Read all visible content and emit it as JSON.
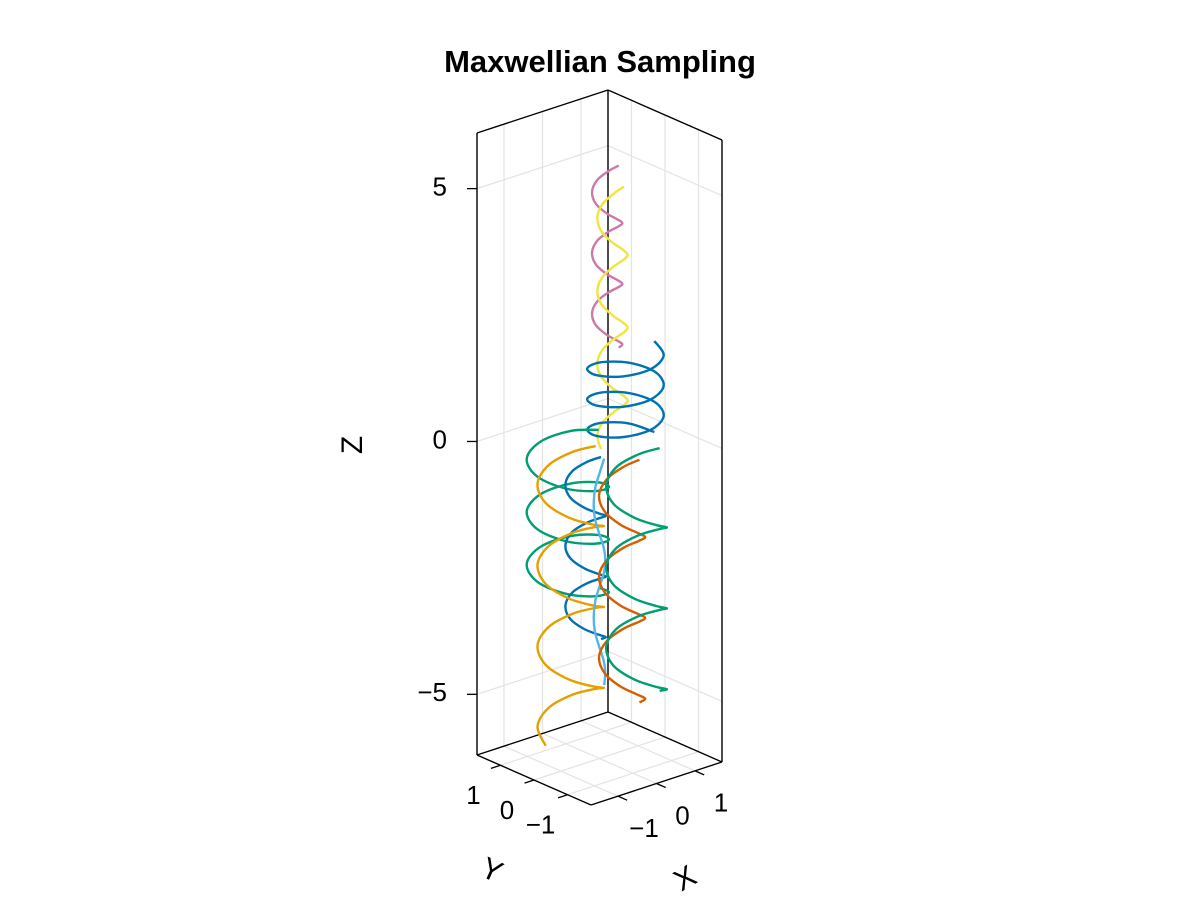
{
  "chart_data": {
    "type": "line3d",
    "title": "Maxwellian Sampling",
    "xlabel": "X",
    "ylabel": "Y",
    "zlabel": "Z",
    "xlim": [
      -1.7,
      1.7
    ],
    "ylim": [
      -1.7,
      1.7
    ],
    "zlim": [
      -6.2,
      6.1
    ],
    "xticks": [
      {
        "value": -1,
        "label": "−1"
      },
      0,
      1
    ],
    "yticks": [
      {
        "value": -1,
        "label": "−1"
      },
      0,
      1
    ],
    "zticks": [
      {
        "value": -5,
        "label": "−5"
      },
      0,
      5
    ],
    "grid": true,
    "series": [
      {
        "color": "#cc79a7",
        "x": [
          0.5,
          0.41,
          0.2,
          -0.01,
          -0.1,
          -0.01,
          0.2,
          0.41,
          0.5,
          0.41,
          0.2,
          -0.01,
          -0.1,
          -0.01,
          0.2,
          0.41,
          0.5,
          0.41,
          0.2,
          -0.01,
          -0.1,
          -0.01,
          0.2,
          0.41,
          0.5
        ],
        "y": [
          0,
          0.21,
          0.3,
          0.21,
          0,
          -0.21,
          -0.3,
          -0.21,
          0,
          0.21,
          0.3,
          0.21,
          0,
          -0.21,
          -0.3,
          -0.21,
          0,
          0.21,
          0.3,
          0.21,
          0,
          -0.21,
          -0.3,
          -0.21,
          0
        ],
        "z": [
          5.4,
          5.25,
          5.1,
          4.95,
          4.8,
          4.65,
          4.5,
          4.35,
          4.2,
          4.05,
          3.9,
          3.75,
          3.6,
          3.45,
          3.3,
          3.15,
          3,
          2.85,
          2.7,
          2.55,
          2.4,
          2.25,
          2.1,
          1.95,
          1.8
        ]
      },
      {
        "color": "#f0e442",
        "x": [
          0.55,
          0.46,
          0.25,
          0.04,
          -0.05,
          0.04,
          0.25,
          0.46,
          0.55,
          0.46,
          0.25,
          0.04,
          -0.05,
          0.04,
          0.25,
          0.46,
          0.55,
          0.46,
          0.25,
          0.04,
          -0.05,
          0.04,
          0.25,
          0.46,
          0.55,
          0.46,
          0.25,
          0.04,
          -0.05
        ],
        "y": [
          -0.1,
          0.11,
          0.2,
          0.11,
          -0.1,
          -0.31,
          -0.4,
          -0.31,
          -0.1,
          0.11,
          0.2,
          0.11,
          -0.1,
          -0.31,
          -0.4,
          -0.31,
          -0.1,
          0.11,
          0.2,
          0.11,
          -0.1,
          -0.31,
          -0.4,
          -0.31,
          -0.1,
          0.11,
          0.2,
          0.11,
          -0.1
        ],
        "z": [
          5,
          4.82,
          4.64,
          4.46,
          4.28,
          4.1,
          3.92,
          3.74,
          3.56,
          3.38,
          3.2,
          3.02,
          2.84,
          2.66,
          2.48,
          2.3,
          2.12,
          1.94,
          1.76,
          1.58,
          1.4,
          1.22,
          1.04,
          0.86,
          0.68,
          0.5,
          0.32,
          0.14,
          -0.04
        ]
      },
      {
        "color": "#0072b2",
        "x": [
          1.25,
          1.03,
          0.5,
          -0.03,
          -0.25,
          -0.03,
          0.5,
          1.03,
          1.25,
          1.03,
          0.5,
          -0.03,
          -0.25,
          -0.03,
          0.5,
          1.03,
          1.25,
          1.03,
          0.5,
          -0.03,
          -0.25,
          -0.03,
          0.5,
          1.03,
          1.25
        ],
        "y": [
          -0.2,
          0.33,
          0.55,
          0.33,
          -0.2,
          -0.73,
          -0.95,
          -0.73,
          -0.2,
          0.33,
          0.55,
          0.33,
          -0.2,
          -0.73,
          -0.95,
          -0.73,
          -0.2,
          0.33,
          0.55,
          0.33,
          -0.2,
          -0.73,
          -0.95,
          -0.73,
          -0.2
        ],
        "z": [
          0,
          0.075,
          0.15,
          0.225,
          0.3,
          0.375,
          0.45,
          0.525,
          0.6,
          0.675,
          0.75,
          0.825,
          0.9,
          0.975,
          1.05,
          1.125,
          1.2,
          1.275,
          1.35,
          1.425,
          1.5,
          1.575,
          1.65,
          1.725,
          1.8
        ]
      },
      {
        "color": "#009e73",
        "x": [
          0.5,
          0.27,
          -0.3,
          -0.87,
          -1.1,
          -0.87,
          -0.3,
          0.27,
          0.5,
          0.27,
          -0.3,
          -0.87,
          -1.1,
          -0.87,
          -0.3,
          0.27,
          0.5,
          0.27,
          -0.3,
          -0.87,
          -1.1,
          -0.87,
          -0.3,
          0.27,
          0.5
        ],
        "y": [
          0.6,
          1.17,
          1.4,
          1.17,
          0.6,
          0.03,
          -0.2,
          0.03,
          0.6,
          1.17,
          1.4,
          1.17,
          0.6,
          0.03,
          -0.2,
          0.03,
          0.6,
          1.17,
          1.4,
          1.17,
          0.6,
          0.03,
          -0.2,
          0.03,
          0.6
        ],
        "z": [
          0,
          -0.13,
          -0.26,
          -0.39,
          -0.52,
          -0.65,
          -0.78,
          -0.91,
          -1.04,
          -1.17,
          -1.3,
          -1.43,
          -1.56,
          -1.69,
          -1.82,
          -1.95,
          -2.08,
          -2.21,
          -2.34,
          -2.47,
          -2.6,
          -2.73,
          -2.86,
          -2.99,
          -3.12
        ]
      },
      {
        "color": "#0072b2",
        "x": [
          0.3,
          0.18,
          -0.1,
          -0.38,
          -0.5,
          -0.38,
          -0.1,
          0.18,
          0.3,
          0.18,
          -0.1,
          -0.38,
          -0.5,
          -0.38,
          -0.1,
          0.18,
          0.3,
          0.18,
          -0.1,
          -0.38,
          -0.5,
          -0.38,
          -0.1,
          0.18,
          0.3
        ],
        "y": [
          0.3,
          0.58,
          0.7,
          0.58,
          0.3,
          0.02,
          -0.1,
          0.02,
          0.3,
          0.58,
          0.7,
          0.58,
          0.3,
          0.02,
          -0.1,
          0.02,
          0.3,
          0.58,
          0.7,
          0.58,
          0.3,
          0.02,
          -0.1,
          0.02,
          0.3
        ],
        "z": [
          -0.4,
          -0.55,
          -0.7,
          -0.85,
          -1,
          -1.15,
          -1.3,
          -1.45,
          -1.6,
          -1.75,
          -1.9,
          -2.05,
          -2.2,
          -2.35,
          -2.5,
          -2.65,
          -2.8,
          -2.95,
          -3.1,
          -3.25,
          -3.4,
          -3.55,
          -3.7,
          -3.85,
          -4
        ]
      },
      {
        "color": "#e69f00",
        "x": [
          0.25,
          0.06,
          -0.4,
          -0.86,
          -1.05,
          -0.86,
          -0.4,
          0.06,
          0.25,
          0.06,
          -0.4,
          -0.86,
          -1.05,
          -0.86,
          -0.4,
          0.06,
          0.25,
          0.06,
          -0.4,
          -0.86,
          -1.05,
          -0.86,
          -0.4,
          0.06,
          0.25,
          0.06,
          -0.4,
          -0.86,
          -1.05
        ],
        "y": [
          0.4,
          0.86,
          1.05,
          0.86,
          0.4,
          -0.06,
          -0.25,
          -0.06,
          0.4,
          0.86,
          1.05,
          0.86,
          0.4,
          -0.06,
          -0.25,
          -0.06,
          0.4,
          0.86,
          1.05,
          0.86,
          0.4,
          -0.06,
          -0.25,
          -0.06,
          0.4,
          0.86,
          1.05,
          0.86,
          0.4
        ],
        "z": [
          -0.2,
          -0.4,
          -0.6,
          -0.8,
          -1,
          -1.2,
          -1.4,
          -1.6,
          -1.8,
          -2,
          -2.2,
          -2.4,
          -2.6,
          -2.8,
          -3,
          -3.2,
          -3.4,
          -3.6,
          -3.8,
          -4,
          -4.2,
          -4.4,
          -4.6,
          -4.8,
          -5,
          -5.2,
          -5.4,
          -5.6,
          -5.8
        ]
      },
      {
        "color": "#56b4e9",
        "x": [
          0.12,
          0.08,
          0,
          -0.08,
          -0.12,
          -0.08,
          0,
          0.08,
          0.12,
          0.08,
          0,
          -0.08,
          -0.12,
          -0.08,
          0,
          0.08,
          0.12
        ],
        "y": [
          0,
          0.08,
          0.12,
          0.08,
          0,
          -0.08,
          -0.12,
          -0.08,
          0,
          0.08,
          0.12,
          0.08,
          0,
          -0.08,
          -0.12,
          -0.08,
          0
        ],
        "z": [
          -0.3,
          -0.58,
          -0.86,
          -1.14,
          -1.42,
          -1.7,
          -1.98,
          -2.26,
          -2.54,
          -2.82,
          -3.1,
          -3.38,
          -3.66,
          -3.94,
          -4.22,
          -4.5,
          -4.78
        ]
      },
      {
        "color": "#d55e00",
        "x": [
          0.95,
          0.82,
          0.5,
          0.18,
          0.05,
          0.18,
          0.5,
          0.82,
          0.95,
          0.82,
          0.5,
          0.18,
          0.05,
          0.18,
          0.5,
          0.82,
          0.95,
          0.82,
          0.5,
          0.18,
          0.05,
          0.18,
          0.5,
          0.82,
          0.95
        ],
        "y": [
          -0.1,
          0.22,
          0.35,
          0.22,
          -0.1,
          -0.42,
          -0.55,
          -0.42,
          -0.1,
          0.22,
          0.35,
          0.22,
          -0.1,
          -0.42,
          -0.55,
          -0.42,
          -0.1,
          0.22,
          0.35,
          0.22,
          -0.1,
          -0.42,
          -0.55,
          -0.42,
          -0.1
        ],
        "z": [
          -0.5,
          -0.7,
          -0.9,
          -1.1,
          -1.3,
          -1.5,
          -1.7,
          -1.9,
          -2.1,
          -2.3,
          -2.5,
          -2.7,
          -2.9,
          -3.1,
          -3.3,
          -3.5,
          -3.7,
          -3.9,
          -4.1,
          -4.3,
          -4.5,
          -4.7,
          -4.9,
          -5.1,
          -5.3
        ]
      },
      {
        "color": "#009e73",
        "x": [
          1.3,
          1.12,
          0.7,
          0.28,
          0.1,
          0.28,
          0.7,
          1.12,
          1.3,
          1.12,
          0.7,
          0.28,
          0.1,
          0.28,
          0.7,
          1.12,
          1.3,
          1.12,
          0.7,
          0.28,
          0.1,
          0.28,
          0.7,
          1.12,
          1.3
        ],
        "y": [
          -0.3,
          0.12,
          0.3,
          0.12,
          -0.3,
          -0.72,
          -0.9,
          -0.72,
          -0.3,
          0.12,
          0.3,
          0.12,
          -0.3,
          -0.72,
          -0.9,
          -0.72,
          -0.3,
          0.12,
          0.3,
          0.12,
          -0.3,
          -0.72,
          -0.9,
          -0.72,
          -0.3
        ],
        "z": [
          -0.3,
          -0.5,
          -0.7,
          -0.9,
          -1.1,
          -1.3,
          -1.5,
          -1.7,
          -1.9,
          -2.1,
          -2.3,
          -2.5,
          -2.7,
          -2.9,
          -3.1,
          -3.3,
          -3.5,
          -3.7,
          -3.9,
          -4.1,
          -4.3,
          -4.5,
          -4.7,
          -4.9,
          -5.1
        ]
      }
    ]
  }
}
